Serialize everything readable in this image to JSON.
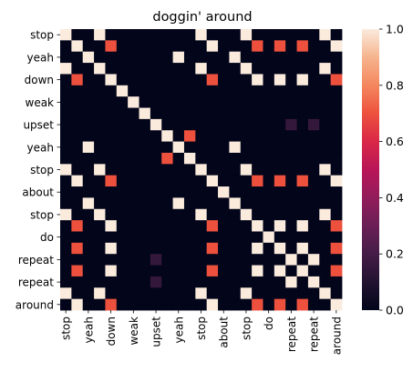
{
  "chart_data": {
    "type": "heatmap",
    "title": "doggin' around",
    "rows": [
      "stop",
      "",
      "yeah",
      "",
      "down",
      "",
      "weak",
      "",
      "upset",
      "",
      "yeah",
      "",
      "stop",
      "",
      "about",
      "",
      "stop",
      "",
      "do",
      "",
      "repeat",
      "",
      "repeat",
      "",
      "around"
    ],
    "cols": [
      "stop",
      "",
      "yeah",
      "",
      "down",
      "",
      "weak",
      "",
      "upset",
      "",
      "yeah",
      "",
      "stop",
      "",
      "about",
      "",
      "stop",
      "",
      "do",
      "",
      "repeat",
      "",
      "repeat",
      "",
      "around"
    ],
    "colorbar": {
      "min": 0.0,
      "max": 1.0,
      "ticks": [
        "0.0",
        "0.2",
        "0.4",
        "0.6",
        "0.8",
        "1.0"
      ]
    },
    "values": [
      [
        1,
        0,
        0,
        1,
        0,
        0,
        0,
        0,
        0,
        0,
        0,
        0,
        1,
        0,
        0,
        0,
        1,
        0,
        0,
        0,
        0,
        0,
        0,
        1,
        0
      ],
      [
        0,
        1,
        0,
        0,
        0.7,
        0,
        0,
        0,
        0,
        0,
        0,
        0,
        0,
        1,
        0,
        0,
        0,
        0.7,
        0,
        0.7,
        0,
        0.7,
        0,
        0,
        1
      ],
      [
        0,
        0,
        1,
        0,
        0,
        0,
        0,
        0,
        0,
        0,
        1,
        0,
        0,
        0,
        0,
        1,
        0,
        0,
        0,
        0,
        0,
        0,
        0,
        0,
        0
      ],
      [
        1,
        0,
        0,
        1,
        0,
        0,
        0,
        0,
        0,
        0,
        0,
        0,
        1,
        0,
        0,
        0,
        1,
        0,
        0,
        0,
        0,
        0,
        0,
        1,
        0
      ],
      [
        0,
        0.7,
        0,
        0,
        1,
        0,
        0,
        0,
        0,
        0,
        0,
        0,
        0,
        0.7,
        0,
        0,
        0,
        1,
        0,
        1,
        0,
        1,
        0,
        0,
        0.7
      ],
      [
        0,
        0,
        0,
        0,
        0,
        1,
        0,
        0,
        0,
        0,
        0,
        0,
        0,
        0,
        0,
        0,
        0,
        0,
        0,
        0,
        0,
        0,
        0,
        0,
        0
      ],
      [
        0,
        0,
        0,
        0,
        0,
        0,
        1,
        0,
        0,
        0,
        0,
        0,
        0,
        0,
        0,
        0,
        0,
        0,
        0,
        0,
        0,
        0,
        0,
        0,
        0
      ],
      [
        0,
        0,
        0,
        0,
        0,
        0,
        0,
        1,
        0,
        0,
        0,
        0,
        0,
        0,
        0,
        0,
        0,
        0,
        0,
        0,
        0,
        0,
        0,
        0,
        0
      ],
      [
        0,
        0,
        0,
        0,
        0,
        0,
        0,
        0,
        1,
        0,
        0,
        0,
        0,
        0,
        0,
        0,
        0,
        0,
        0,
        0,
        0.15,
        0,
        0.15,
        0,
        0
      ],
      [
        0,
        0,
        0,
        0,
        0,
        0,
        0,
        0,
        0,
        1,
        0,
        0.7,
        0,
        0,
        0,
        0,
        0,
        0,
        0,
        0,
        0,
        0,
        0,
        0,
        0
      ],
      [
        0,
        0,
        1,
        0,
        0,
        0,
        0,
        0,
        0,
        0,
        1,
        0,
        0,
        0,
        0,
        1,
        0,
        0,
        0,
        0,
        0,
        0,
        0,
        0,
        0
      ],
      [
        0,
        0,
        0,
        0,
        0,
        0,
        0,
        0,
        0,
        0.7,
        0,
        1,
        0,
        0,
        0,
        0,
        0,
        0,
        0,
        0,
        0,
        0,
        0,
        0,
        0
      ],
      [
        1,
        0,
        0,
        1,
        0,
        0,
        0,
        0,
        0,
        0,
        0,
        0,
        1,
        0,
        0,
        0,
        1,
        0,
        0,
        0,
        0,
        0,
        0,
        1,
        0
      ],
      [
        0,
        1,
        0,
        0,
        0.7,
        0,
        0,
        0,
        0,
        0,
        0,
        0,
        0,
        1,
        0,
        0,
        0,
        0.7,
        0,
        0.7,
        0,
        0.7,
        0,
        0,
        1
      ],
      [
        0,
        0,
        0,
        0,
        0,
        0,
        0,
        0,
        0,
        0,
        0,
        0,
        0,
        0,
        1,
        0,
        0,
        0,
        0,
        0,
        0,
        0,
        0,
        0,
        0
      ],
      [
        0,
        0,
        1,
        0,
        0,
        0,
        0,
        0,
        0,
        0,
        1,
        0,
        0,
        0,
        0,
        1,
        0,
        0,
        0,
        0,
        0,
        0,
        0,
        0,
        0
      ],
      [
        1,
        0,
        0,
        1,
        0,
        0,
        0,
        0,
        0,
        0,
        0,
        0,
        1,
        0,
        0,
        0,
        1,
        0,
        0,
        0,
        0,
        0,
        0,
        1,
        0
      ],
      [
        0,
        0.7,
        0,
        0,
        1,
        0,
        0,
        0,
        0,
        0,
        0,
        0,
        0,
        0.7,
        0,
        0,
        0,
        1,
        0,
        1,
        0,
        1,
        0,
        0,
        0.7
      ],
      [
        0,
        0,
        0,
        0,
        0,
        0,
        0,
        0,
        0,
        0,
        0,
        0,
        0,
        0,
        0,
        0,
        0,
        0,
        1,
        0,
        0,
        0,
        0,
        0,
        0
      ],
      [
        0,
        0.7,
        0,
        0,
        1,
        0,
        0,
        0,
        0,
        0,
        0,
        0,
        0,
        0.7,
        0,
        0,
        0,
        1,
        0,
        1,
        0,
        1,
        0,
        0,
        0.7
      ],
      [
        0,
        0,
        0,
        0,
        0,
        0,
        0,
        0,
        0.15,
        0,
        0,
        0,
        0,
        0,
        0,
        0,
        0,
        0,
        0,
        0,
        1,
        0,
        1,
        0,
        0
      ],
      [
        0,
        0.7,
        0,
        0,
        1,
        0,
        0,
        0,
        0,
        0,
        0,
        0,
        0,
        0.7,
        0,
        0,
        0,
        1,
        0,
        1,
        0,
        1,
        0,
        0,
        0.7
      ],
      [
        0,
        0,
        0,
        0,
        0,
        0,
        0,
        0,
        0.15,
        0,
        0,
        0,
        0,
        0,
        0,
        0,
        0,
        0,
        0,
        0,
        1,
        0,
        1,
        0,
        0
      ],
      [
        1,
        0,
        0,
        1,
        0,
        0,
        0,
        0,
        0,
        0,
        0,
        0,
        1,
        0,
        0,
        0,
        1,
        0,
        0,
        0,
        0,
        0,
        0,
        1,
        0
      ],
      [
        0,
        1,
        0,
        0,
        0.7,
        0,
        0,
        0,
        0,
        0,
        0,
        0,
        0,
        1,
        0,
        0,
        0,
        0.7,
        0,
        0.7,
        0,
        0.7,
        0,
        0,
        1
      ]
    ]
  }
}
